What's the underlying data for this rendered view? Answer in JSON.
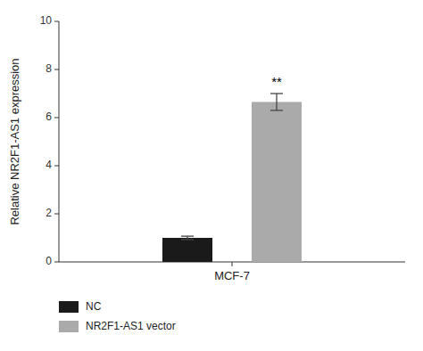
{
  "chart_data": {
    "type": "bar",
    "ylabel": "Relative NR2F1-AS1 expression",
    "categories": [
      "MCF-7"
    ],
    "series": [
      {
        "name": "NC",
        "color": "#1a1a1a",
        "values": [
          1.0
        ],
        "errors": [
          0.07
        ]
      },
      {
        "name": "NR2F1-AS1 vector",
        "color": "#aaaaaa",
        "values": [
          6.65
        ],
        "errors": [
          0.35
        ],
        "annotation": "**"
      }
    ],
    "ylim": [
      0,
      10
    ],
    "yticks": [
      0,
      2,
      4,
      6,
      8,
      10
    ],
    "grid": false,
    "legend": "bottom"
  }
}
